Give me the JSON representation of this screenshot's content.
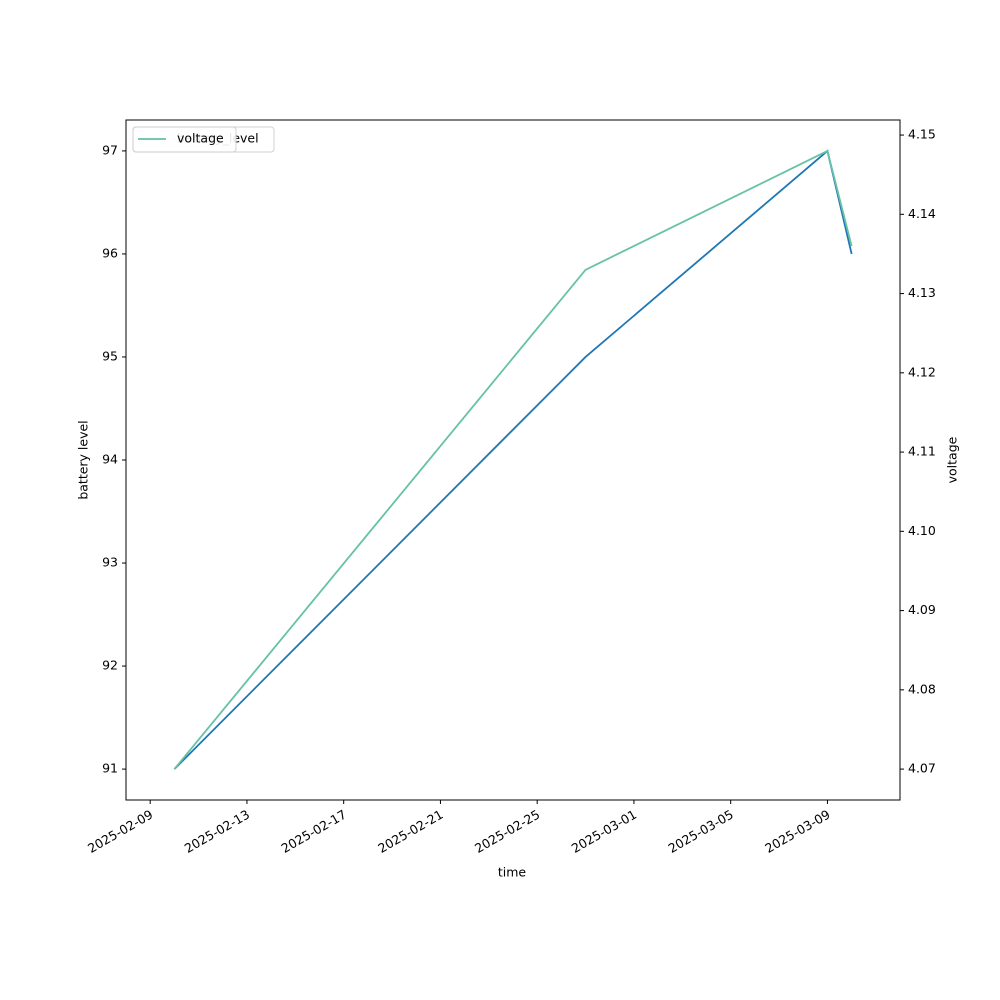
{
  "chart_data": {
    "type": "line",
    "x_label": "time",
    "y_label": "battery level",
    "y2_label": "voltage",
    "x": [
      "2025-02-10",
      "2025-02-27",
      "2025-03-09",
      "2025-03-10"
    ],
    "series": [
      {
        "name": "battery_level",
        "color": "#1f77b4",
        "values": [
          91,
          95,
          97,
          96
        ]
      },
      {
        "name": "voltage",
        "color": "#66c2a5",
        "axis": "y2",
        "values": [
          4.07,
          4.133,
          4.148,
          4.136
        ]
      }
    ],
    "xlim": [
      "2025-02-08",
      "2025-03-12"
    ],
    "xticks": [
      "2025-02-09",
      "2025-02-13",
      "2025-02-17",
      "2025-02-21",
      "2025-02-25",
      "2025-03-01",
      "2025-03-05",
      "2025-03-09"
    ],
    "ylim": [
      90.7,
      97.3
    ],
    "yticks": [
      91,
      92,
      93,
      94,
      95,
      96,
      97
    ],
    "y2lim": [
      4.0661,
      4.1519
    ],
    "y2ticks": [
      4.07,
      4.08,
      4.09,
      {
        "value": 4.1,
        "label": "4.10"
      },
      4.11,
      4.12,
      4.13,
      4.14,
      4.15
    ],
    "legend": "upper left",
    "grid": false
  }
}
